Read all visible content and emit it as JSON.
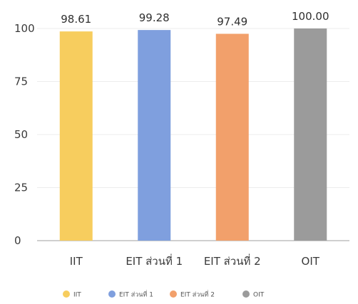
{
  "chart_data": {
    "type": "bar",
    "title": "",
    "xlabel": "",
    "ylabel": "",
    "categories": [
      "IIT",
      "EIT ส่วนที่ 1",
      "EIT ส่วนที่ 2",
      "OIT"
    ],
    "values": [
      98.61,
      99.28,
      97.49,
      100.0
    ],
    "data_labels": [
      "98.61",
      "99.28",
      "97.49",
      "100.00"
    ],
    "colors": [
      "#f7cd5e",
      "#7f9fde",
      "#f2a06b",
      "#9b9b9b"
    ],
    "ylim": [
      0,
      100
    ],
    "yticks": [
      0,
      25,
      50,
      75,
      100
    ],
    "grid": true,
    "legend": {
      "position": "bottom",
      "entries": [
        "IIT",
        "EIT ส่วนที่ 1",
        "EIT ส่วนที่ 2",
        "OIT"
      ]
    }
  }
}
